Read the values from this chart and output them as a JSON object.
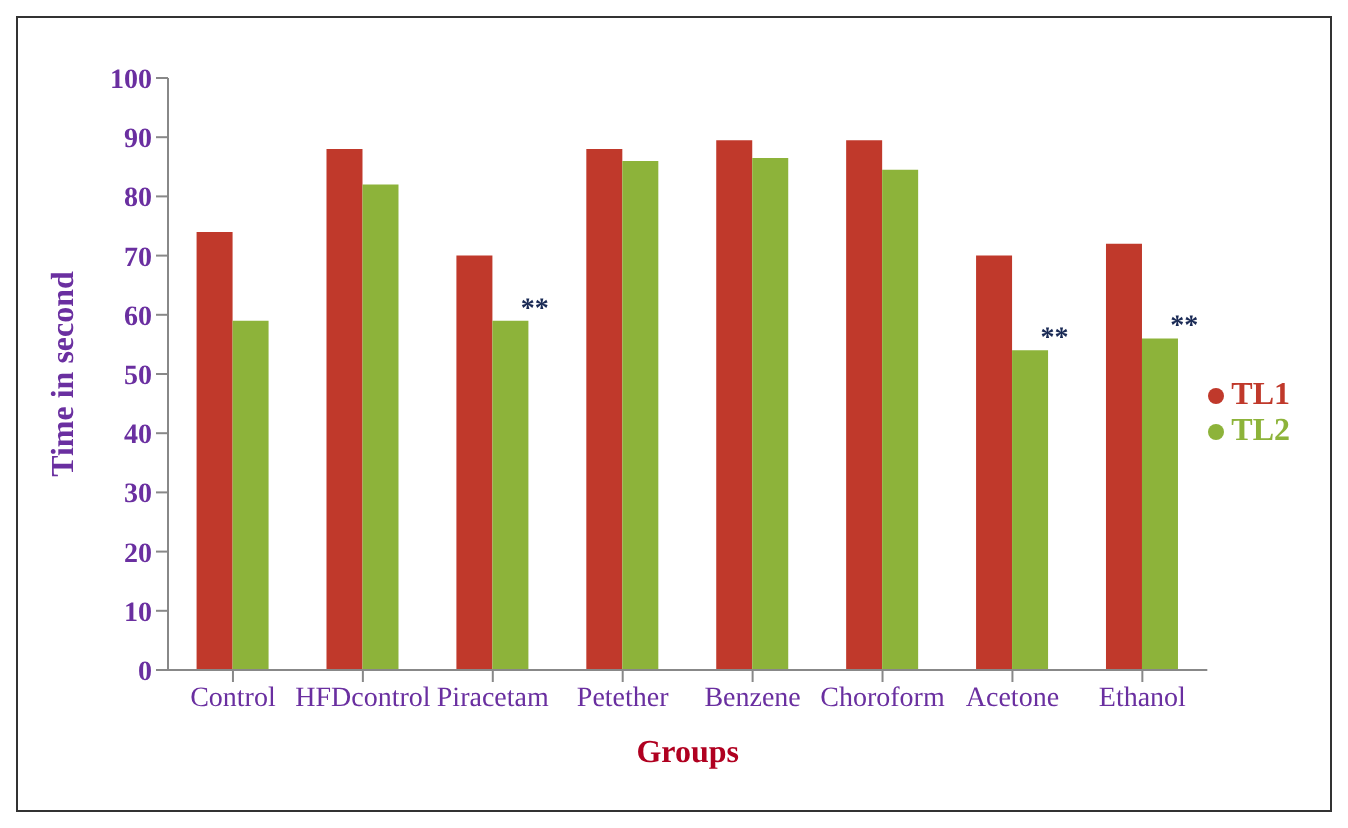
{
  "chart_data": {
    "type": "bar",
    "xlabel": "Groups",
    "ylabel": "Time in second",
    "categories": [
      "Control",
      "HFDcontrol",
      "Piracetam",
      "Petether",
      "Benzene",
      "Choroform",
      "Acetone",
      "Ethanol"
    ],
    "series": [
      {
        "name": "TL1",
        "color": "#c0392b",
        "values": [
          74,
          88,
          70,
          88,
          89.5,
          89.5,
          70,
          72
        ]
      },
      {
        "name": "TL2",
        "color": "#8db33a",
        "values": [
          59,
          82,
          59,
          86,
          86.5,
          84.5,
          54,
          56
        ]
      }
    ],
    "ylim": [
      0,
      100
    ],
    "yticks": [
      0,
      10,
      20,
      30,
      40,
      50,
      60,
      70,
      80,
      90,
      100
    ],
    "grid": false,
    "legend": "right",
    "annotations": [
      {
        "text": "**",
        "x": "Piracetam",
        "y": 59
      },
      {
        "text": "**",
        "x": "Acetone",
        "y": 54
      },
      {
        "text": "**",
        "x": "Ethanol",
        "y": 56
      }
    ]
  }
}
